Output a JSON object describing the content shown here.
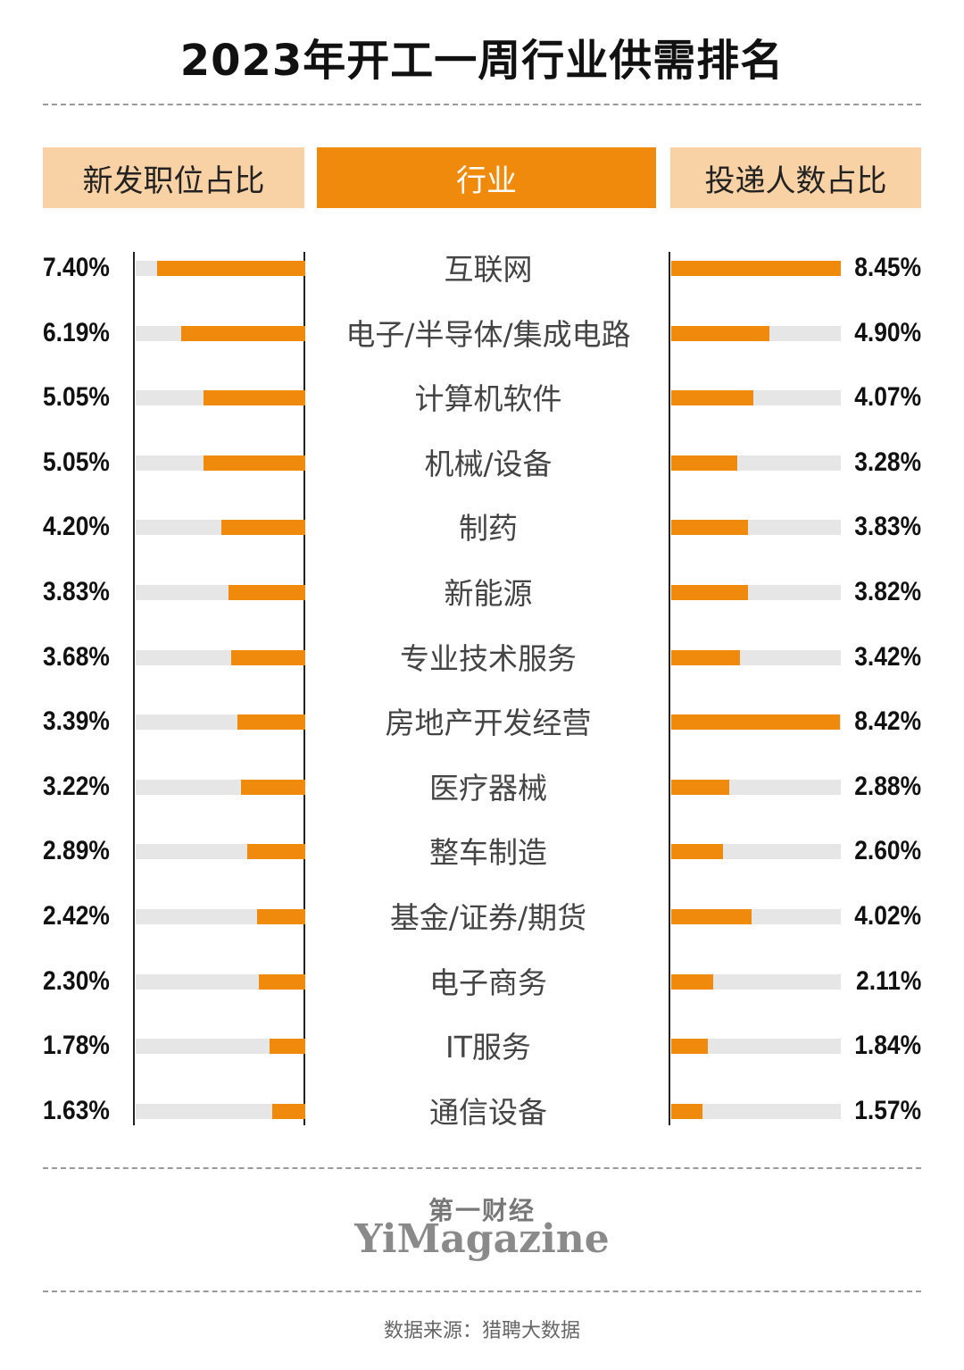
{
  "title": "2023年开工一周行业供需排名",
  "headers": {
    "left": "新发职位占比",
    "middle": "行业",
    "right": "投递人数占比"
  },
  "colors": {
    "accent": "#f08a0c",
    "header_side": "#f8d1a4",
    "track": "#e6e6e6"
  },
  "chart_data": {
    "type": "bar",
    "title": "2023年开工一周行业供需排名",
    "categories": [
      "互联网",
      "电子/半导体/集成电路",
      "计算机软件",
      "机械/设备",
      "制药",
      "新能源",
      "专业技术服务",
      "房地产开发经营",
      "医疗器械",
      "整车制造",
      "基金/证券/期货",
      "电子商务",
      "IT服务",
      "通信设备"
    ],
    "series": [
      {
        "name": "新发职位占比",
        "values": [
          7.4,
          6.19,
          5.05,
          5.05,
          4.2,
          3.83,
          3.68,
          3.39,
          3.22,
          2.89,
          2.42,
          2.3,
          1.78,
          1.63
        ],
        "labels": [
          "7.40%",
          "6.19%",
          "5.05%",
          "5.05%",
          "4.20%",
          "3.83%",
          "3.68%",
          "3.39%",
          "3.22%",
          "2.89%",
          "2.42%",
          "2.30%",
          "1.78%",
          "1.63%"
        ]
      },
      {
        "name": "投递人数占比",
        "values": [
          8.45,
          4.9,
          4.07,
          3.28,
          3.83,
          3.82,
          3.42,
          8.42,
          2.88,
          2.6,
          4.02,
          2.11,
          1.84,
          1.57
        ],
        "labels": [
          "8.45%",
          "4.90%",
          "4.07%",
          "3.28%",
          "3.83%",
          "3.82%",
          "3.42%",
          "8.42%",
          "2.88%",
          "2.60%",
          "4.02%",
          "2.11%",
          "1.84%",
          "1.57%"
        ]
      }
    ],
    "ylim": [
      0,
      8.45
    ]
  },
  "logo": {
    "cn": "第一财经",
    "en": "YiMagazine"
  },
  "source": "数据来源：猎聘大数据"
}
